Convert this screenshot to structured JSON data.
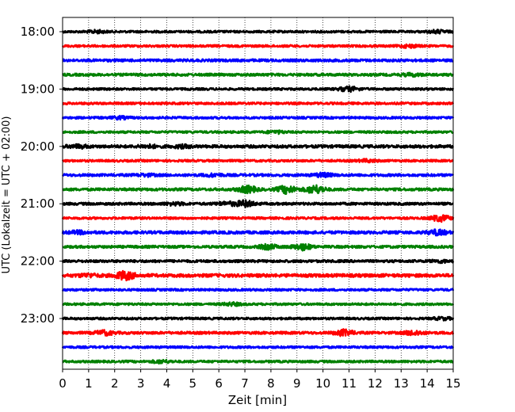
{
  "chart_data": {
    "type": "line",
    "title": "",
    "xlabel": "Zeit  [min]",
    "ylabel": "UTC (Lokalzeit = UTC + 02:00)",
    "xlim": [
      0,
      15
    ],
    "xticks": [
      "0",
      "1",
      "2",
      "3",
      "4",
      "5",
      "6",
      "7",
      "8",
      "9",
      "10",
      "11",
      "12",
      "13",
      "14",
      "15"
    ],
    "yticks": [
      "18:00",
      "19:00",
      "20:00",
      "21:00",
      "22:00",
      "23:00"
    ],
    "grid": "vertical dotted lines at each minute",
    "colors": [
      "#000000",
      "#ff0000",
      "#0000ff",
      "#008000"
    ],
    "series": [
      {
        "start": "18:00",
        "color": "#000000",
        "amplitude": 0.6,
        "bursts": [
          {
            "t": 1.3,
            "a": 1.2
          },
          {
            "t": 14.4,
            "a": 1.3
          }
        ]
      },
      {
        "start": "18:15",
        "color": "#ff0000",
        "amplitude": 0.6,
        "bursts": [
          {
            "t": 13.3,
            "a": 1.3
          }
        ]
      },
      {
        "start": "18:30",
        "color": "#0000ff",
        "amplitude": 0.7,
        "bursts": []
      },
      {
        "start": "18:45",
        "color": "#008000",
        "amplitude": 0.7,
        "bursts": [
          {
            "t": 13.4,
            "a": 1.3
          }
        ]
      },
      {
        "start": "19:00",
        "color": "#000000",
        "amplitude": 0.6,
        "bursts": [
          {
            "t": 10.9,
            "a": 1.2
          },
          {
            "t": 11.1,
            "a": 1.2
          }
        ]
      },
      {
        "start": "19:15",
        "color": "#ff0000",
        "amplitude": 0.6,
        "bursts": []
      },
      {
        "start": "19:30",
        "color": "#0000ff",
        "amplitude": 0.6,
        "bursts": [
          {
            "t": 2.2,
            "a": 1.2
          }
        ]
      },
      {
        "start": "19:45",
        "color": "#008000",
        "amplitude": 0.6,
        "bursts": [
          {
            "t": 8.2,
            "a": 1.2
          }
        ]
      },
      {
        "start": "20:00",
        "color": "#000000",
        "amplitude": 0.8,
        "bursts": [
          {
            "t": 0.6,
            "a": 1.5
          },
          {
            "t": 3.3,
            "a": 1.4
          },
          {
            "t": 4.6,
            "a": 1.4
          }
        ]
      },
      {
        "start": "20:15",
        "color": "#ff0000",
        "amplitude": 0.6,
        "bursts": [
          {
            "t": 11.7,
            "a": 1.2
          }
        ]
      },
      {
        "start": "20:30",
        "color": "#0000ff",
        "amplitude": 0.7,
        "bursts": [
          {
            "t": 3.2,
            "a": 1.2
          },
          {
            "t": 5.8,
            "a": 1.3
          },
          {
            "t": 10.0,
            "a": 1.6
          }
        ]
      },
      {
        "start": "20:45",
        "color": "#008000",
        "amplitude": 0.7,
        "bursts": [
          {
            "t": 7.1,
            "a": 2.4
          },
          {
            "t": 8.6,
            "a": 2.6
          },
          {
            "t": 9.7,
            "a": 2.8
          }
        ]
      },
      {
        "start": "21:00",
        "color": "#000000",
        "amplitude": 0.7,
        "bursts": [
          {
            "t": 4.3,
            "a": 1.3
          },
          {
            "t": 6.3,
            "a": 1.5
          },
          {
            "t": 7.0,
            "a": 2.2
          }
        ]
      },
      {
        "start": "21:15",
        "color": "#ff0000",
        "amplitude": 0.6,
        "bursts": [
          {
            "t": 14.5,
            "a": 2.2
          }
        ]
      },
      {
        "start": "21:30",
        "color": "#0000ff",
        "amplitude": 0.8,
        "bursts": [
          {
            "t": 0.6,
            "a": 1.4
          },
          {
            "t": 14.4,
            "a": 2.0
          }
        ]
      },
      {
        "start": "21:45",
        "color": "#008000",
        "amplitude": 0.7,
        "bursts": [
          {
            "t": 7.9,
            "a": 1.8
          },
          {
            "t": 9.2,
            "a": 2.2
          }
        ]
      },
      {
        "start": "22:00",
        "color": "#000000",
        "amplitude": 0.7,
        "bursts": [
          {
            "t": 14.5,
            "a": 1.2
          }
        ]
      },
      {
        "start": "22:15",
        "color": "#ff0000",
        "amplitude": 0.9,
        "bursts": [
          {
            "t": 1.0,
            "a": 1.5
          },
          {
            "t": 2.4,
            "a": 3.0
          }
        ]
      },
      {
        "start": "22:30",
        "color": "#0000ff",
        "amplitude": 0.6,
        "bursts": []
      },
      {
        "start": "22:45",
        "color": "#008000",
        "amplitude": 0.6,
        "bursts": [
          {
            "t": 6.5,
            "a": 1.3
          }
        ]
      },
      {
        "start": "23:00",
        "color": "#000000",
        "amplitude": 0.6,
        "bursts": [
          {
            "t": 14.6,
            "a": 1.2
          }
        ]
      },
      {
        "start": "23:15",
        "color": "#ff0000",
        "amplitude": 0.7,
        "bursts": [
          {
            "t": 1.6,
            "a": 1.8
          },
          {
            "t": 10.8,
            "a": 2.2
          },
          {
            "t": 13.5,
            "a": 1.8
          }
        ]
      },
      {
        "start": "23:30",
        "color": "#0000ff",
        "amplitude": 0.6,
        "bursts": []
      },
      {
        "start": "23:45",
        "color": "#008000",
        "amplitude": 0.6,
        "bursts": [
          {
            "t": 3.8,
            "a": 1.3
          }
        ]
      }
    ]
  }
}
